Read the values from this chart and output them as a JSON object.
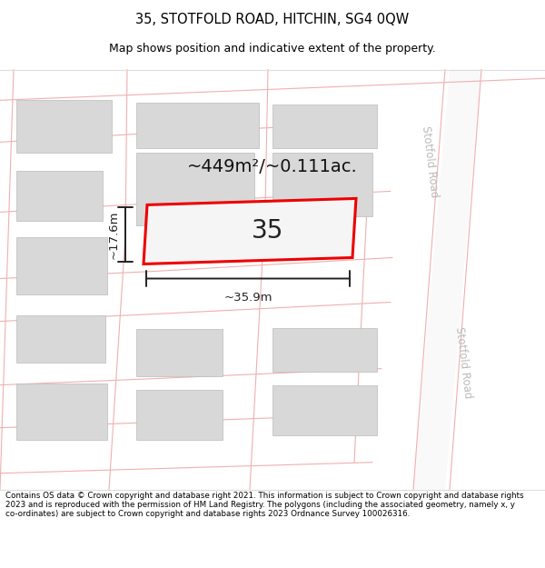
{
  "title": "35, STOTFOLD ROAD, HITCHIN, SG4 0QW",
  "subtitle": "Map shows position and indicative extent of the property.",
  "footer": "Contains OS data © Crown copyright and database right 2021. This information is subject to Crown copyright and database rights 2023 and is reproduced with the permission of HM Land Registry. The polygons (including the associated geometry, namely x, y co-ordinates) are subject to Crown copyright and database rights 2023 Ordnance Survey 100026316.",
  "area_text": "~449m²/~0.111ac.",
  "plot_number": "35",
  "dim_width": "~35.9m",
  "dim_height": "~17.6m",
  "road_name": "Stotfold Road",
  "road_line_color": "#f0b0b0",
  "road_band_color": "#e8e8e8",
  "road_label_color": "#bbbbbb",
  "building_fill": "#d8d8d8",
  "building_edge": "#bbbbbb",
  "plot_fill": "#f5f5f5",
  "plot_edge": "#ee0000",
  "bg_color": "#ffffff",
  "dim_color": "#222222"
}
